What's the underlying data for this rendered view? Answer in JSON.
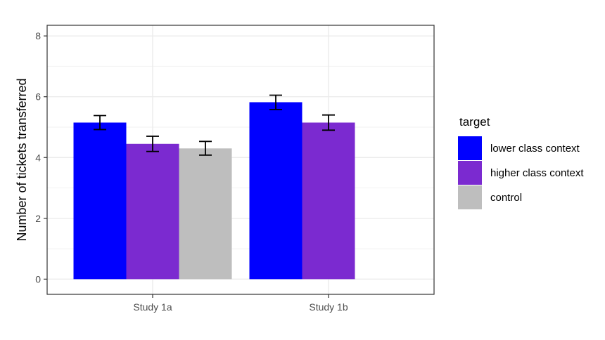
{
  "chart_data": {
    "type": "bar",
    "title": "",
    "xlabel": "",
    "ylabel": "Number of tickets transferred",
    "ylim": [
      -0.5,
      8.35
    ],
    "yticks": [
      0,
      2,
      4,
      6,
      8
    ],
    "grid": true,
    "theme": "bw",
    "legend_position": "right",
    "categories": [
      "Study 1a",
      "Study 1b"
    ],
    "legend_title": "target",
    "series": [
      {
        "name": "lower class context",
        "color": "#0000FF",
        "values": [
          5.15,
          5.82
        ],
        "error_low": [
          4.92,
          5.58
        ],
        "error_high": [
          5.38,
          6.05
        ]
      },
      {
        "name": "higher class context",
        "color": "#7B2AD0",
        "values": [
          4.45,
          5.15
        ],
        "error_low": [
          4.2,
          4.9
        ],
        "error_high": [
          4.7,
          5.4
        ]
      },
      {
        "name": "control",
        "color": "#BEBEBE",
        "values": [
          4.3,
          null
        ],
        "error_low": [
          4.08,
          null
        ],
        "error_high": [
          4.53,
          null
        ]
      }
    ]
  }
}
